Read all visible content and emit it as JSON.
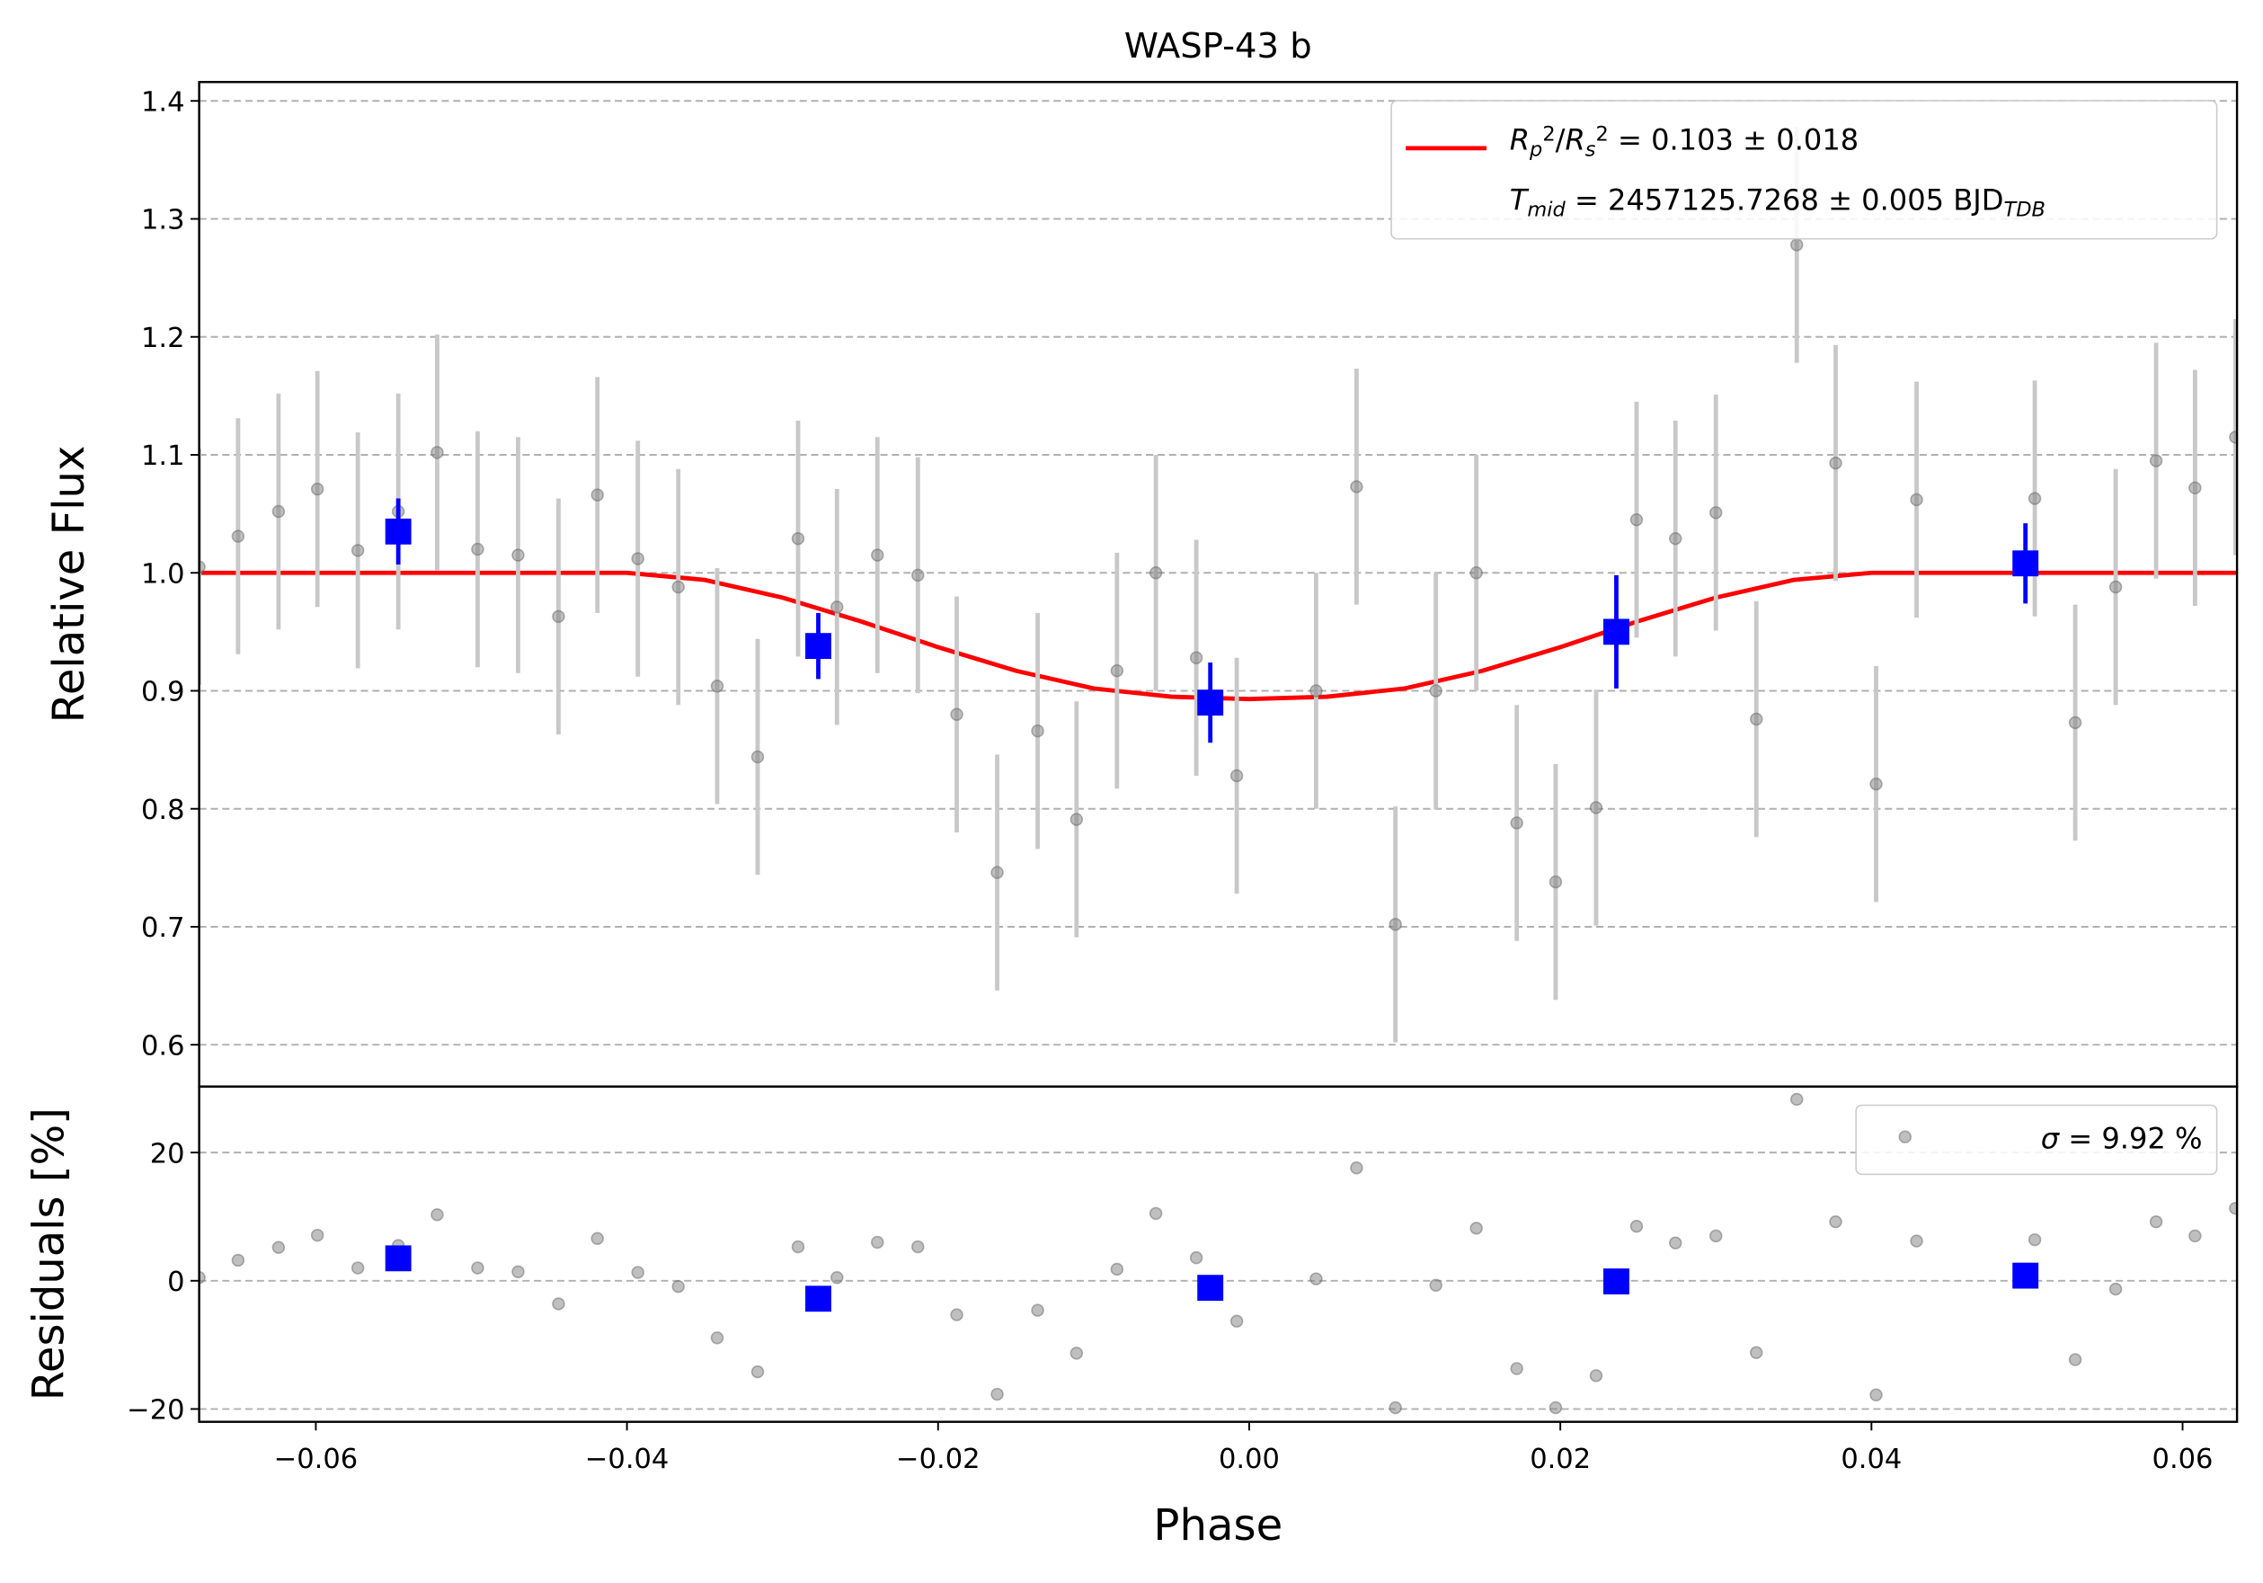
{
  "chart_data": [
    {
      "type": "errorbar",
      "title": "WASP-43 b",
      "ylabel": "Relative Flux",
      "xlim": [
        -0.0675,
        0.0635
      ],
      "ylim": [
        0.5646,
        1.416
      ],
      "yticks": [
        0.6,
        0.7,
        0.8,
        0.9,
        {
          "value": 1,
          "label": "1.0"
        },
        1.1,
        1.2,
        1.3,
        1.4
      ],
      "grid": true,
      "legend": "upper right",
      "series": [
        {
          "kind": "line",
          "color": "#ff0000",
          "name": [
            {
              "text": "R",
              "style": "italic"
            },
            {
              "text": "p",
              "style": "sub"
            },
            {
              "text": "2",
              "style": "sup"
            },
            {
              "text": "/",
              "style": "normal"
            },
            {
              "text": "R",
              "style": "italic"
            },
            {
              "text": "s",
              "style": "sub"
            },
            {
              "text": "2",
              "style": "sup"
            },
            {
              "text": " = 0.103 ± 0.018",
              "style": "normal"
            }
          ],
          "name2": [
            {
              "text": "T",
              "style": "italic"
            },
            {
              "text": "mid",
              "style": "sub"
            },
            {
              "text": " = 2457125.7268 ± 0.005 BJD",
              "style": "normal"
            },
            {
              "text": "TDB",
              "style": "sub"
            }
          ],
          "x": [
            -0.0675,
            -0.04,
            -0.035,
            -0.03,
            -0.025,
            -0.02,
            -0.015,
            -0.01,
            -0.005,
            0,
            0.005,
            0.01,
            0.015,
            0.02,
            0.025,
            0.03,
            0.035,
            0.04,
            0.0635
          ],
          "values": [
            1,
            1,
            0.994,
            0.979,
            0.959,
            0.937,
            0.917,
            0.902,
            0.895,
            0.893,
            0.895,
            0.902,
            0.917,
            0.937,
            0.959,
            0.979,
            0.994,
            1,
            1
          ]
        },
        {
          "kind": "points",
          "color": "#808080",
          "yerr": 0.1,
          "x": [
            -0.0675,
            -0.065,
            -0.0624,
            -0.0599,
            -0.0573,
            -0.0547,
            -0.0522,
            -0.0496,
            -0.047,
            -0.0444,
            -0.0419,
            -0.0393,
            -0.0367,
            -0.0342,
            -0.0316,
            -0.029,
            -0.0265,
            -0.0239,
            -0.0213,
            -0.0188,
            -0.0162,
            -0.0136,
            -0.0111,
            -0.0085,
            -0.006,
            -0.0034,
            -0.0008,
            0.0043,
            0.0069,
            0.0094,
            0.012,
            0.0146,
            0.0172,
            0.0197,
            0.0223,
            0.0249,
            0.0274,
            0.03,
            0.0326,
            0.0352,
            0.0377,
            0.0403,
            0.0429,
            0.0505,
            0.0531,
            0.0557,
            0.0583,
            0.0608,
            0.0634
          ],
          "values": [
            1.005,
            1.031,
            1.052,
            1.071,
            1.019,
            1.052,
            1.102,
            1.02,
            1.015,
            0.963,
            1.066,
            1.012,
            0.988,
            0.904,
            0.844,
            1.029,
            0.971,
            1.015,
            0.998,
            0.88,
            0.746,
            0.866,
            0.791,
            0.917,
            1.0,
            0.928,
            0.828,
            0.9,
            1.073,
            0.702,
            0.9,
            1.0,
            0.788,
            0.738,
            0.801,
            1.045,
            1.029,
            1.051,
            0.876,
            1.278,
            1.093,
            0.821,
            1.062,
            1.063,
            0.873,
            0.988,
            1.095,
            1.072,
            1.115
          ]
        },
        {
          "kind": "binned",
          "color": "#0000ff",
          "x": [
            -0.0547,
            -0.0277,
            -0.0025,
            0.0236,
            0.0499
          ],
          "values": [
            1.035,
            0.938,
            0.89,
            0.95,
            1.008
          ],
          "yerr": [
            0.028,
            0.028,
            0.034,
            0.048,
            0.034
          ]
        }
      ]
    },
    {
      "type": "scatter",
      "ylabel": "Residuals [%]",
      "xlabel": "Phase",
      "xlim": [
        -0.0675,
        0.0635
      ],
      "ylim": [
        -22,
        30.3
      ],
      "xticks": [
        {
          "value": -0.06,
          "label": "−0.06"
        },
        {
          "value": -0.04,
          "label": "−0.04"
        },
        {
          "value": -0.02,
          "label": "−0.02"
        },
        {
          "value": 0,
          "label": "0.00"
        },
        0.02,
        0.04,
        0.06
      ],
      "yticks": [
        {
          "value": -20,
          "label": "−20"
        },
        0,
        20
      ],
      "grid": true,
      "legend": "upper right",
      "series": [
        {
          "kind": "points",
          "color": "#808080",
          "name": [
            {
              "text": "σ",
              "style": "italic"
            },
            {
              "text": " = 9.92 %",
              "style": "normal"
            }
          ],
          "x": [
            -0.0675,
            -0.065,
            -0.0624,
            -0.0599,
            -0.0573,
            -0.0547,
            -0.0522,
            -0.0496,
            -0.047,
            -0.0444,
            -0.0419,
            -0.0393,
            -0.0367,
            -0.0342,
            -0.0316,
            -0.029,
            -0.0265,
            -0.0239,
            -0.0213,
            -0.0188,
            -0.0162,
            -0.0136,
            -0.0111,
            -0.0085,
            -0.006,
            -0.0034,
            -0.0008,
            0.0043,
            0.0069,
            0.0094,
            0.012,
            0.0146,
            0.0172,
            0.0197,
            0.0223,
            0.0249,
            0.0274,
            0.03,
            0.0326,
            0.0352,
            0.0377,
            0.0403,
            0.0429,
            0.0505,
            0.0531,
            0.0557,
            0.0583,
            0.0608,
            0.0634
          ],
          "values": [
            0.5,
            3.2,
            5.2,
            7.1,
            2.0,
            5.5,
            10.3,
            2.0,
            1.4,
            -3.6,
            6.6,
            1.3,
            -0.9,
            -8.9,
            -14.2,
            5.3,
            0.5,
            6.0,
            5.3,
            -5.3,
            -17.7,
            -4.6,
            -11.3,
            1.8,
            10.5,
            3.6,
            -6.3,
            0.3,
            17.6,
            -19.8,
            -0.7,
            8.2,
            -13.7,
            -19.8,
            -14.8,
            8.5,
            5.9,
            7.0,
            -11.2,
            28.3,
            9.2,
            -17.8,
            6.2,
            6.4,
            -12.3,
            -1.3,
            9.2,
            7.0,
            11.3
          ]
        },
        {
          "kind": "binned",
          "color": "#0000ff",
          "x": [
            -0.0547,
            -0.0277,
            -0.0025,
            0.0236,
            0.0499
          ],
          "values": [
            3.5,
            -2.8,
            -1.1,
            -0.1,
            0.8
          ]
        }
      ]
    }
  ]
}
